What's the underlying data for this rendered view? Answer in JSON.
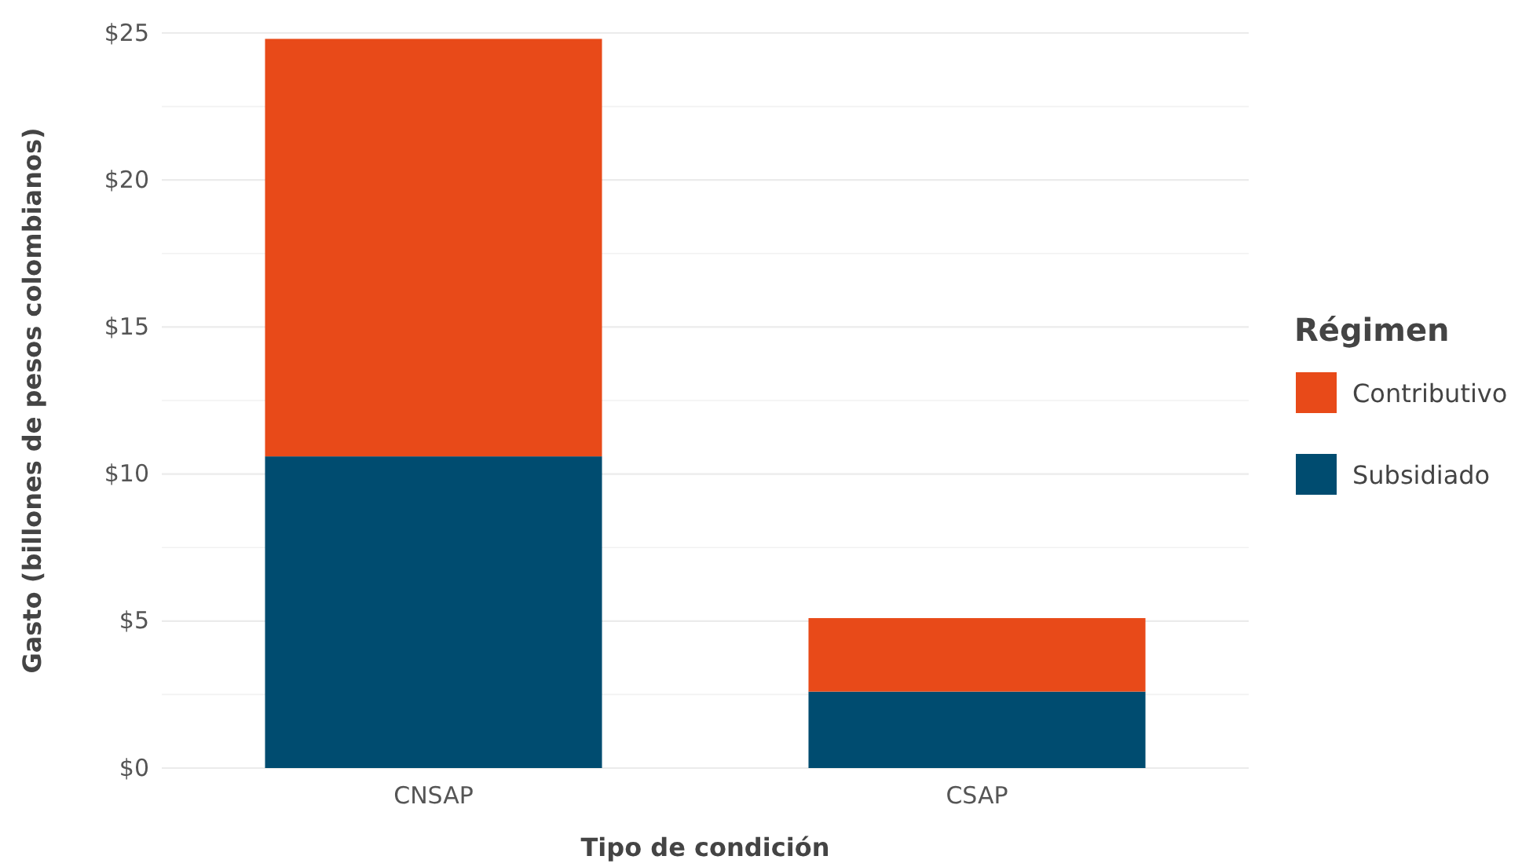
{
  "chart_data": {
    "type": "bar",
    "stacked": true,
    "xlabel": "Tipo de condición",
    "ylabel": "Gasto (billones de pesos colombianos)",
    "legend_title": "Régimen",
    "legend": "right",
    "grid": "y",
    "categories": [
      "CNSAP",
      "CSAP"
    ],
    "series": [
      {
        "name": "Subsidiado",
        "color": "#004c70",
        "values": [
          10.6,
          2.6
        ]
      },
      {
        "name": "Contributivo",
        "color": "#e84a19",
        "values": [
          14.2,
          2.5
        ]
      }
    ],
    "ylim": [
      0,
      25
    ],
    "yticks": [
      {
        "value": 0,
        "label": "$0"
      },
      {
        "value": 2.5,
        "label": null
      },
      {
        "value": 5,
        "label": "$5"
      },
      {
        "value": 7.5,
        "label": null
      },
      {
        "value": 10,
        "label": "$10"
      },
      {
        "value": 12.5,
        "label": null
      },
      {
        "value": 15,
        "label": "$15"
      },
      {
        "value": 17.5,
        "label": null
      },
      {
        "value": 20,
        "label": "$20"
      },
      {
        "value": 22.5,
        "label": null
      },
      {
        "value": 25,
        "label": "$25"
      }
    ]
  }
}
